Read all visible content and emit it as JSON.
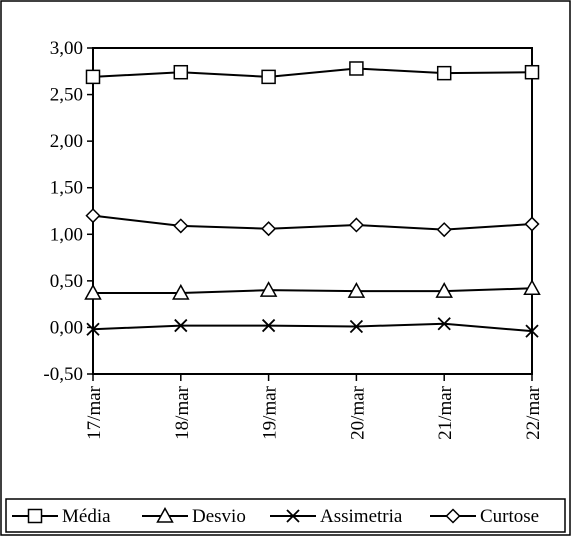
{
  "chart_data": {
    "type": "line",
    "title": "",
    "xlabel": "",
    "ylabel": "",
    "categories": [
      "17/mar",
      "18/mar",
      "19/mar",
      "20/mar",
      "21/mar",
      "22/mar"
    ],
    "ylim": [
      -0.5,
      3.0
    ],
    "yticks": [
      "3,00",
      "2,50",
      "2,00",
      "1,50",
      "1,00",
      "0,50",
      "0,00",
      "-0,50"
    ],
    "ytick_values": [
      3.0,
      2.5,
      2.0,
      1.5,
      1.0,
      0.5,
      0.0,
      -0.5
    ],
    "grid": false,
    "legend_position": "bottom",
    "series": [
      {
        "name": "Média",
        "marker": "square",
        "values": [
          2.69,
          2.74,
          2.69,
          2.78,
          2.73,
          2.74
        ]
      },
      {
        "name": "Desvio",
        "marker": "triangle",
        "values": [
          0.37,
          0.37,
          0.4,
          0.39,
          0.39,
          0.42
        ]
      },
      {
        "name": "Assimetria",
        "marker": "x",
        "values": [
          -0.02,
          0.02,
          0.02,
          0.01,
          0.04,
          -0.04
        ]
      },
      {
        "name": "Curtose",
        "marker": "diamond",
        "values": [
          1.2,
          1.09,
          1.06,
          1.1,
          1.05,
          1.11
        ]
      }
    ],
    "colors": {
      "line": "#000000",
      "background": "#ffffff"
    }
  }
}
